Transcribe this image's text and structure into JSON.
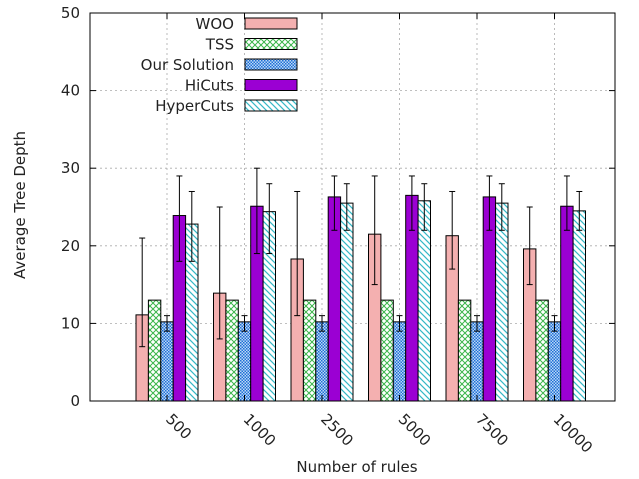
{
  "chart_data": {
    "type": "bar",
    "xlabel": "Number of rules",
    "ylabel": "Average Tree Depth",
    "ylim": [
      0,
      50
    ],
    "yticks": [
      0,
      10,
      20,
      30,
      40,
      50
    ],
    "grid": true,
    "legend_position": "top-left",
    "categories": [
      "500",
      "1000",
      "2500",
      "5000",
      "7500",
      "10000"
    ],
    "series": [
      {
        "name": "WOO",
        "values": [
          11.1,
          13.9,
          18.3,
          21.5,
          21.3,
          19.6
        ],
        "err_low": [
          7.0,
          8.0,
          11.0,
          15.0,
          17.0,
          15.0
        ],
        "err_high": [
          21.0,
          25.0,
          27.0,
          29.0,
          27.0,
          25.0
        ],
        "pattern": "solid",
        "color": "#f4b0b0"
      },
      {
        "name": "TSS",
        "values": [
          13.0,
          13.0,
          13.0,
          13.0,
          13.0,
          13.0
        ],
        "err_low": null,
        "err_high": null,
        "pattern": "crosshatch",
        "color": "#3ab54a"
      },
      {
        "name": "Our Solution",
        "values": [
          10.2,
          10.2,
          10.2,
          10.2,
          10.2,
          10.2
        ],
        "err_low": [
          9.0,
          9.0,
          9.0,
          9.0,
          9.0,
          9.0
        ],
        "err_high": [
          11.0,
          11.0,
          11.0,
          11.0,
          11.0,
          11.0
        ],
        "pattern": "dots",
        "color": "#1f6fd6"
      },
      {
        "name": "HiCuts",
        "values": [
          23.9,
          25.1,
          26.3,
          26.5,
          26.3,
          25.1
        ],
        "err_low": [
          18.0,
          19.0,
          22.0,
          22.0,
          22.0,
          22.0
        ],
        "err_high": [
          29.0,
          30.0,
          29.0,
          29.0,
          29.0,
          29.0
        ],
        "pattern": "solid",
        "color": "#9b00d3"
      },
      {
        "name": "HyperCuts",
        "values": [
          22.8,
          24.4,
          25.5,
          25.8,
          25.5,
          24.5
        ],
        "err_low": [
          18.0,
          19.0,
          22.0,
          22.0,
          22.0,
          22.0
        ],
        "err_high": [
          27.0,
          28.0,
          28.0,
          28.0,
          28.0,
          27.0
        ],
        "pattern": "diagonal",
        "color": "#34b8c6"
      }
    ]
  }
}
